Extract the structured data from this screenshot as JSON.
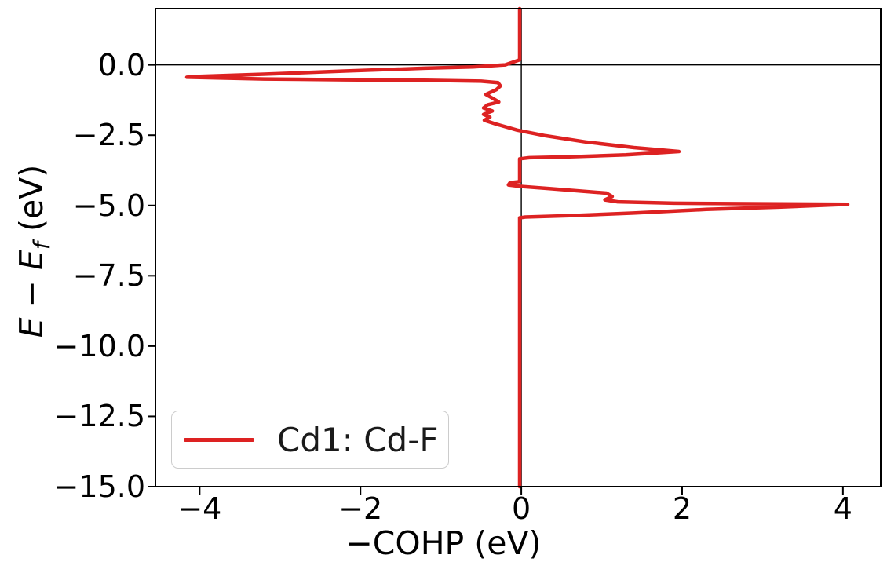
{
  "figure": {
    "ylabel_parts": {
      "E1": "E",
      "minus": " − ",
      "E2": "E",
      "sub": "f",
      "unit": " (eV)"
    }
  },
  "chart_data": {
    "type": "line",
    "title": "",
    "xlabel": "−COHP (eV)",
    "ylabel": "E − E_f (eV)",
    "xlim": [
      -4.55,
      4.47
    ],
    "ylim": [
      -15.0,
      2.0
    ],
    "grid": false,
    "zero_lines": {
      "vertical_at_x": 0,
      "horizontal_at_y": 0,
      "color": "#000000"
    },
    "x_ticks": [
      {
        "label": "−4",
        "value": -4
      },
      {
        "label": "−2",
        "value": -2
      },
      {
        "label": "0",
        "value": 0
      },
      {
        "label": "2",
        "value": 2
      },
      {
        "label": "4",
        "value": 4
      }
    ],
    "y_ticks": [
      {
        "label": "0.0",
        "value": 0
      },
      {
        "label": "−2.5",
        "value": -2.5
      },
      {
        "label": "−5.0",
        "value": -5.0
      },
      {
        "label": "−7.5",
        "value": -7.5
      },
      {
        "label": "−10.0",
        "value": -10.0
      },
      {
        "label": "−12.5",
        "value": -12.5
      },
      {
        "label": "−15.0",
        "value": -15.0
      }
    ],
    "legend": {
      "position": "lower left",
      "entries": [
        {
          "label": "Cd1: Cd-F",
          "color": "#dd2222"
        }
      ]
    },
    "series": [
      {
        "name": "Cd1: Cd-F",
        "color": "#dd2222",
        "line_width": 4.5,
        "points": [
          [
            -0.02,
            2.0
          ],
          [
            -0.02,
            0.18
          ],
          [
            -0.2,
            0.0
          ],
          [
            -0.6,
            -0.07
          ],
          [
            -1.2,
            -0.12
          ],
          [
            -2.2,
            -0.22
          ],
          [
            -3.2,
            -0.33
          ],
          [
            -4.0,
            -0.41
          ],
          [
            -4.16,
            -0.44
          ],
          [
            -3.2,
            -0.5
          ],
          [
            -2.2,
            -0.53
          ],
          [
            -1.2,
            -0.55
          ],
          [
            -0.5,
            -0.58
          ],
          [
            -0.29,
            -0.63
          ],
          [
            -0.26,
            -0.75
          ],
          [
            -0.31,
            -0.88
          ],
          [
            -0.44,
            -1.05
          ],
          [
            -0.36,
            -1.18
          ],
          [
            -0.28,
            -1.32
          ],
          [
            -0.42,
            -1.42
          ],
          [
            -0.47,
            -1.53
          ],
          [
            -0.36,
            -1.64
          ],
          [
            -0.47,
            -1.76
          ],
          [
            -0.39,
            -1.86
          ],
          [
            -0.46,
            -1.97
          ],
          [
            -0.32,
            -2.1
          ],
          [
            -0.05,
            -2.32
          ],
          [
            0.3,
            -2.52
          ],
          [
            0.8,
            -2.74
          ],
          [
            1.4,
            -2.94
          ],
          [
            1.96,
            -3.08
          ],
          [
            1.3,
            -3.2
          ],
          [
            0.6,
            -3.27
          ],
          [
            0.1,
            -3.3
          ],
          [
            -0.02,
            -3.34
          ],
          [
            -0.02,
            -4.15
          ],
          [
            -0.14,
            -4.19
          ],
          [
            -0.16,
            -4.27
          ],
          [
            -0.02,
            -4.32
          ],
          [
            0.35,
            -4.4
          ],
          [
            0.75,
            -4.49
          ],
          [
            1.06,
            -4.56
          ],
          [
            1.13,
            -4.68
          ],
          [
            1.04,
            -4.8
          ],
          [
            1.2,
            -4.87
          ],
          [
            1.9,
            -4.92
          ],
          [
            3.0,
            -4.94
          ],
          [
            4.06,
            -4.96
          ],
          [
            3.2,
            -5.06
          ],
          [
            2.3,
            -5.14
          ],
          [
            1.4,
            -5.27
          ],
          [
            0.6,
            -5.36
          ],
          [
            0.05,
            -5.41
          ],
          [
            -0.02,
            -5.44
          ],
          [
            -0.02,
            -15.0
          ]
        ]
      }
    ]
  }
}
